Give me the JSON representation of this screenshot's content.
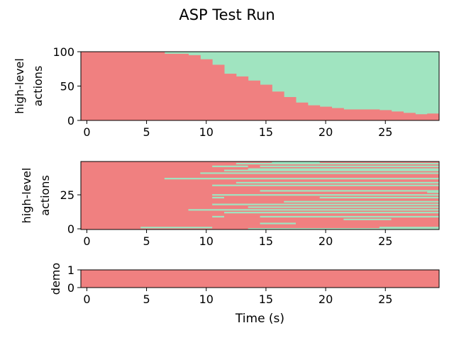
{
  "title": "ASP Test Run",
  "colors": {
    "fail": "#f08080",
    "success": "#a0e4c0",
    "axis": "#000000"
  },
  "chart_data": [
    {
      "type": "area",
      "name": "stacked-high-level-actions",
      "ylabel": "high-level\nactions",
      "xlabel": "",
      "xlim": [
        -0.5,
        29.5
      ],
      "ylim": [
        0,
        100
      ],
      "xticks": [
        "0",
        "5",
        "10",
        "15",
        "20",
        "25"
      ],
      "yticks": [
        "0",
        "50",
        "100"
      ],
      "step_x": [
        -0.5,
        6.5,
        8.5,
        9.5,
        10.5,
        11.5,
        12.5,
        13.5,
        14.5,
        15.5,
        16.5,
        17.5,
        18.5,
        19.5,
        20.5,
        21.5,
        22.5,
        23.5,
        24.5,
        25.5,
        26.5,
        27.5,
        28.5,
        29.5
      ],
      "fail_values": [
        100,
        97,
        95,
        89,
        81,
        68,
        64,
        58,
        52,
        42,
        34,
        26,
        22,
        20,
        18,
        16,
        16,
        16,
        15,
        13,
        11,
        9,
        10
      ]
    },
    {
      "type": "heatmap",
      "name": "high-level-actions-matrix",
      "ylabel": "high-level\nactions",
      "xlabel": "",
      "xlim": [
        -0.5,
        29.5
      ],
      "ylim": [
        -0.5,
        49.5
      ],
      "xticks": [
        "0",
        "5",
        "10",
        "15",
        "20",
        "25"
      ],
      "yticks": [
        "0",
        "25"
      ],
      "row_count": 50,
      "success_segments": [
        {
          "row": 0,
          "from": 13.5,
          "to": 29.5
        },
        {
          "row": 1,
          "from": 4.5,
          "to": 10.5
        },
        {
          "row": 1,
          "from": 24.5,
          "to": 29.5
        },
        {
          "row": 4,
          "from": 14.5,
          "to": 17.5
        },
        {
          "row": 7,
          "from": 21.5,
          "to": 25.5
        },
        {
          "row": 9,
          "from": 10.5,
          "to": 11.5
        },
        {
          "row": 9,
          "from": 14.5,
          "to": 29.5
        },
        {
          "row": 12,
          "from": 11.5,
          "to": 29.5
        },
        {
          "row": 14,
          "from": 8.5,
          "to": 29.5
        },
        {
          "row": 16,
          "from": 13.5,
          "to": 29.5
        },
        {
          "row": 18,
          "from": 10.5,
          "to": 29.5
        },
        {
          "row": 20,
          "from": 16.5,
          "to": 29.5
        },
        {
          "row": 23,
          "from": 10.5,
          "to": 11.5
        },
        {
          "row": 23,
          "from": 19.5,
          "to": 29.5
        },
        {
          "row": 25,
          "from": 10.5,
          "to": 29.5
        },
        {
          "row": 27,
          "from": 28.5,
          "to": 29.5
        },
        {
          "row": 28,
          "from": 14.5,
          "to": 29.5
        },
        {
          "row": 32,
          "from": 10.5,
          "to": 29.5
        },
        {
          "row": 34,
          "from": 12.5,
          "to": 29.5
        },
        {
          "row": 37,
          "from": 6.5,
          "to": 29.5
        },
        {
          "row": 41,
          "from": 9.5,
          "to": 29.5
        },
        {
          "row": 43,
          "from": 11.5,
          "to": 29.5
        },
        {
          "row": 44,
          "from": 13.5,
          "to": 29.5
        },
        {
          "row": 46,
          "from": 10.5,
          "to": 13.5
        },
        {
          "row": 46,
          "from": 14.5,
          "to": 29.5
        },
        {
          "row": 48,
          "from": 12.5,
          "to": 29.5
        },
        {
          "row": 49,
          "from": 15.5,
          "to": 19.5
        }
      ]
    },
    {
      "type": "heatmap",
      "name": "demo-strip",
      "ylabel": "demo",
      "xlabel": "Time (s)",
      "xlim": [
        -0.5,
        29.5
      ],
      "ylim": [
        0,
        1
      ],
      "xticks": [
        "0",
        "5",
        "10",
        "15",
        "20",
        "25"
      ],
      "yticks": [
        "0",
        "1"
      ],
      "values": "fail"
    }
  ]
}
